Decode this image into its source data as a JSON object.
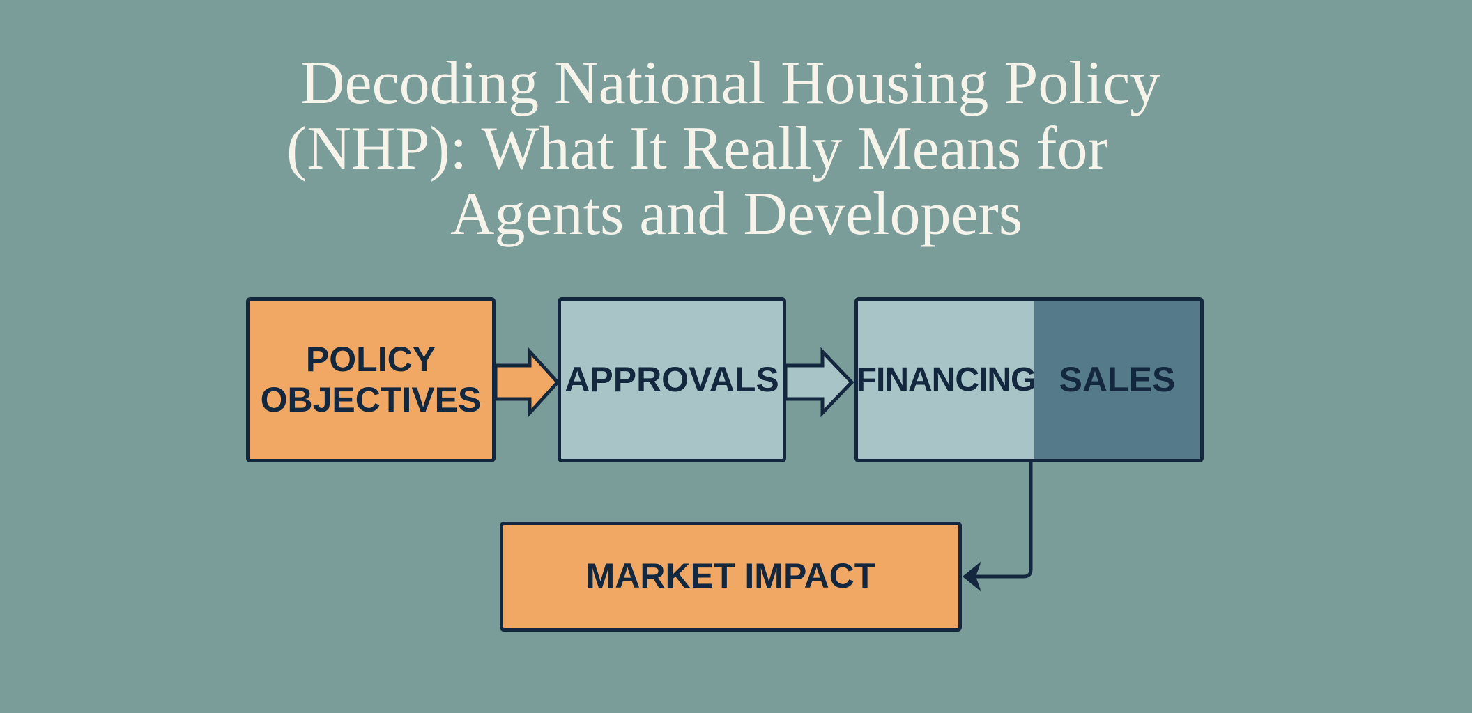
{
  "title": {
    "lines": [
      "Decoding National Housing Policy",
      "(NHP): What It Really Means for",
      "Agents and Developers"
    ]
  },
  "diagram": {
    "nodes": [
      {
        "label_lines": [
          "POLICY",
          "OBJECTIVES"
        ]
      },
      {
        "label": "APPROVALS"
      },
      {
        "label": "FINANCING"
      },
      {
        "label": "SALES"
      },
      {
        "label": "MARKET IMPACT"
      }
    ],
    "colors": {
      "background": "#7b9d9a",
      "orange": "#f0a864",
      "light": "#a9c4c6",
      "dark": "#557a8a",
      "outline": "#13283f"
    }
  }
}
